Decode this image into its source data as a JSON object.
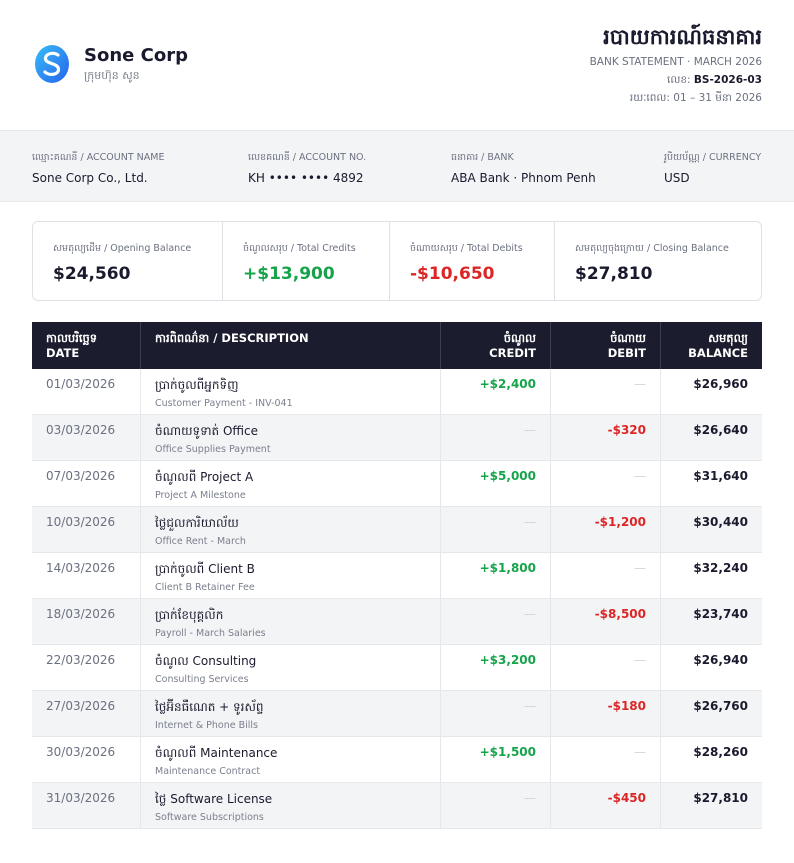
{
  "header": {
    "company_name": "Sone Corp",
    "company_sub": "ក្រុមហ៊ុន សូន",
    "title": "របាយការណ៍ធនាគារ",
    "subtitle": "BANK STATEMENT · MARCH 2026",
    "ref_label": "លេខ:",
    "ref_value": "BS-2026-03",
    "period": "រយៈពេល: 01 – 31 មីនា 2026"
  },
  "account": [
    {
      "label": "ឈ្មោះគណនី / ACCOUNT NAME",
      "value": "Sone Corp Co., Ltd."
    },
    {
      "label": "លេខគណនី / ACCOUNT NO.",
      "value": "KH •••• •••• 4892"
    },
    {
      "label": "ធនាគារ / BANK",
      "value": "ABA Bank · Phnom Penh"
    },
    {
      "label": "រូបិយប័ណ្ណ / CURRENCY",
      "value": "USD"
    }
  ],
  "summary": [
    {
      "label": "សមតុល្យដើម / Opening Balance",
      "value": "$24,560",
      "color": "#1a1a2e"
    },
    {
      "label": "ចំណូលសរុប / Total Credits",
      "value": "+$13,900",
      "color": "#16a34a"
    },
    {
      "label": "ចំណាយសរុប / Total Debits",
      "value": "-$10,650",
      "color": "#dc2626"
    },
    {
      "label": "សមតុល្យចុងក្រោយ / Closing Balance",
      "value": "$27,810",
      "color": "#1a1a2e"
    }
  ],
  "table": {
    "headers": {
      "date_km": "កាលបរិច្ឆេទ",
      "date_en": "DATE",
      "desc": "ការពិពណ៌នា / DESCRIPTION",
      "credit_km": "ចំណូល",
      "credit_en": "CREDIT",
      "debit_km": "ចំណាយ",
      "debit_en": "DEBIT",
      "balance_km": "សមតុល្យ",
      "balance_en": "BALANCE"
    },
    "dash": "—",
    "rows": [
      {
        "date": "01/03/2026",
        "desc": "ប្រាក់ចូលពីអ្នកទិញ",
        "sub": "Customer Payment - INV-041",
        "credit": "+$2,400",
        "debit": "",
        "balance": "$26,960"
      },
      {
        "date": "03/03/2026",
        "desc": "ចំណាយទូទាត់ Office",
        "sub": "Office Supplies Payment",
        "credit": "",
        "debit": "-$320",
        "balance": "$26,640"
      },
      {
        "date": "07/03/2026",
        "desc": "ចំណូលពី Project A",
        "sub": "Project A Milestone",
        "credit": "+$5,000",
        "debit": "",
        "balance": "$31,640"
      },
      {
        "date": "10/03/2026",
        "desc": "ថ្លៃជួលការិយាល័យ",
        "sub": "Office Rent - March",
        "credit": "",
        "debit": "-$1,200",
        "balance": "$30,440"
      },
      {
        "date": "14/03/2026",
        "desc": "ប្រាក់ចូលពី Client B",
        "sub": "Client B Retainer Fee",
        "credit": "+$1,800",
        "debit": "",
        "balance": "$32,240"
      },
      {
        "date": "18/03/2026",
        "desc": "ប្រាក់ខែបុគ្គលិក",
        "sub": "Payroll - March Salaries",
        "credit": "",
        "debit": "-$8,500",
        "balance": "$23,740"
      },
      {
        "date": "22/03/2026",
        "desc": "ចំណូល Consulting",
        "sub": "Consulting Services",
        "credit": "+$3,200",
        "debit": "",
        "balance": "$26,940"
      },
      {
        "date": "27/03/2026",
        "desc": "ថ្លៃអ៊ីនធឺណេត + ទូរស័ព្ទ",
        "sub": "Internet & Phone Bills",
        "credit": "",
        "debit": "-$180",
        "balance": "$26,760"
      },
      {
        "date": "30/03/2026",
        "desc": "ចំណូលពី Maintenance",
        "sub": "Maintenance Contract",
        "credit": "+$1,500",
        "debit": "",
        "balance": "$28,260"
      },
      {
        "date": "31/03/2026",
        "desc": "ថ្លៃ Software License",
        "sub": "Software Subscriptions",
        "credit": "",
        "debit": "-$450",
        "balance": "$27,810"
      }
    ]
  }
}
